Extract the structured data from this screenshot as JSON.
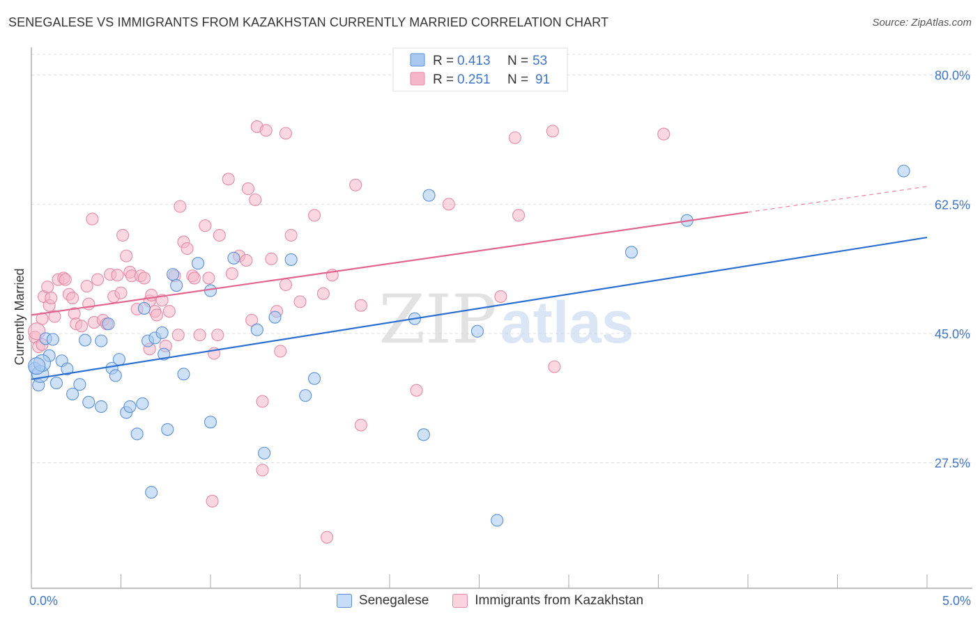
{
  "header": {
    "title": "SENEGALESE VS IMMIGRANTS FROM KAZAKHSTAN CURRENTLY MARRIED CORRELATION CHART",
    "source": "Source: ZipAtlas.com"
  },
  "watermark": {
    "zip": "ZIP",
    "atlas": "atlas"
  },
  "legend": {
    "r_label": "R =",
    "n_label": "N =",
    "entries": [
      {
        "r": "0.413",
        "n": "53"
      },
      {
        "r": "0.251",
        "n": "91"
      }
    ]
  },
  "bottom_legend": [
    "Senegalese",
    "Immigrants from Kazakhstan"
  ],
  "chart_data": {
    "type": "scatter",
    "title": "SENEGALESE VS IMMIGRANTS FROM KAZAKHSTAN CURRENTLY MARRIED CORRELATION CHART",
    "xlabel": "",
    "ylabel": "Currently Married",
    "xlim": [
      0,
      5
    ],
    "ylim": [
      10.5,
      82.8
    ],
    "x_tick_labels": [
      {
        "value": 0,
        "label": "0.0%"
      },
      {
        "value": 5,
        "label": "5.0%"
      }
    ],
    "y_tick_labels": [
      {
        "value": 27.5,
        "label": "27.5%"
      },
      {
        "value": 45.0,
        "label": "45.0%"
      },
      {
        "value": 62.5,
        "label": "62.5%"
      },
      {
        "value": 80.0,
        "label": "80.0%"
      }
    ],
    "grid": true,
    "legend_position": "top-center",
    "colors": {
      "blue": "#a8c8f0",
      "blue_edge": "#5b8fd6",
      "blue_line": "#2a6fcf",
      "pink": "#f5b7c8",
      "pink_edge": "#e48aa6",
      "pink_line": "#e0648e",
      "tick_label": "#3f74c4"
    },
    "series": [
      {
        "name": "Senegalese",
        "color": "#a8c8f0",
        "trend": {
          "x": [
            0,
            5
          ],
          "y": [
            38.8,
            58.0
          ],
          "dashed_from": null
        },
        "points": [
          [
            0.02,
            40.3
          ],
          [
            0.04,
            38.0
          ],
          [
            0.08,
            44.3
          ],
          [
            0.1,
            42.0
          ],
          [
            0.12,
            44.2
          ],
          [
            0.14,
            38.3
          ],
          [
            0.17,
            41.3
          ],
          [
            0.2,
            40.2
          ],
          [
            0.23,
            36.8
          ],
          [
            0.27,
            38.1
          ],
          [
            0.3,
            44.1
          ],
          [
            0.32,
            35.7
          ],
          [
            0.39,
            44.0
          ],
          [
            0.39,
            35.1
          ],
          [
            0.43,
            46.3
          ],
          [
            0.45,
            40.3
          ],
          [
            0.47,
            39.3
          ],
          [
            0.49,
            41.5
          ],
          [
            0.53,
            34.3
          ],
          [
            0.55,
            35.1
          ],
          [
            0.59,
            31.4
          ],
          [
            0.62,
            35.5
          ],
          [
            0.63,
            48.4
          ],
          [
            0.65,
            44.0
          ],
          [
            0.67,
            23.5
          ],
          [
            0.69,
            44.4
          ],
          [
            0.73,
            45.1
          ],
          [
            0.74,
            42.2
          ],
          [
            0.76,
            32.0
          ],
          [
            0.79,
            53.0
          ],
          [
            0.81,
            51.5
          ],
          [
            0.85,
            39.5
          ],
          [
            0.93,
            54.5
          ],
          [
            1.0,
            50.8
          ],
          [
            1.0,
            33.0
          ],
          [
            1.13,
            55.2
          ],
          [
            1.26,
            45.5
          ],
          [
            1.3,
            28.8
          ],
          [
            1.36,
            47.2
          ],
          [
            1.45,
            55.0
          ],
          [
            1.53,
            36.6
          ],
          [
            1.58,
            38.9
          ],
          [
            2.14,
            47.0
          ],
          [
            2.19,
            31.3
          ],
          [
            2.22,
            63.7
          ],
          [
            2.49,
            45.3
          ],
          [
            2.6,
            19.7
          ],
          [
            3.35,
            56.0
          ],
          [
            3.66,
            60.3
          ],
          [
            4.87,
            67.0
          ],
          [
            0.05,
            39.5
          ],
          [
            0.06,
            41.0
          ],
          [
            0.03,
            40.6
          ]
        ]
      },
      {
        "name": "Immigrants from Kazakhstan",
        "color": "#f5b7c8",
        "trend": {
          "x": [
            0,
            5
          ],
          "y": [
            47.5,
            64.9
          ],
          "dashed_from": 4.0
        },
        "points": [
          [
            0.02,
            44.5
          ],
          [
            0.04,
            43.2
          ],
          [
            0.06,
            43.5
          ],
          [
            0.06,
            47.0
          ],
          [
            0.07,
            50.0
          ],
          [
            0.09,
            51.3
          ],
          [
            0.1,
            48.8
          ],
          [
            0.11,
            49.8
          ],
          [
            0.13,
            47.3
          ],
          [
            0.15,
            52.3
          ],
          [
            0.18,
            52.5
          ],
          [
            0.19,
            52.3
          ],
          [
            0.21,
            50.3
          ],
          [
            0.23,
            49.8
          ],
          [
            0.24,
            47.7
          ],
          [
            0.25,
            46.3
          ],
          [
            0.28,
            46.0
          ],
          [
            0.31,
            51.4
          ],
          [
            0.32,
            49.0
          ],
          [
            0.34,
            60.5
          ],
          [
            0.35,
            46.5
          ],
          [
            0.37,
            52.3
          ],
          [
            0.4,
            46.8
          ],
          [
            0.42,
            46.3
          ],
          [
            0.44,
            53.0
          ],
          [
            0.46,
            50.0
          ],
          [
            0.48,
            52.9
          ],
          [
            0.5,
            50.5
          ],
          [
            0.51,
            58.3
          ],
          [
            0.53,
            55.5
          ],
          [
            0.55,
            53.3
          ],
          [
            0.56,
            52.8
          ],
          [
            0.59,
            48.3
          ],
          [
            0.61,
            52.8
          ],
          [
            0.63,
            52.5
          ],
          [
            0.66,
            42.9
          ],
          [
            0.66,
            49.4
          ],
          [
            0.67,
            50.2
          ],
          [
            0.69,
            48.0
          ],
          [
            0.7,
            47.5
          ],
          [
            0.73,
            49.5
          ],
          [
            0.75,
            43.3
          ],
          [
            0.77,
            48.0
          ],
          [
            0.8,
            52.8
          ],
          [
            0.82,
            44.8
          ],
          [
            0.83,
            62.2
          ],
          [
            0.85,
            57.4
          ],
          [
            0.87,
            56.5
          ],
          [
            0.9,
            52.8
          ],
          [
            0.91,
            52.5
          ],
          [
            0.94,
            44.8
          ],
          [
            0.97,
            59.6
          ],
          [
            0.99,
            52.5
          ],
          [
            1.02,
            42.3
          ],
          [
            1.04,
            44.8
          ],
          [
            1.05,
            58.3
          ],
          [
            1.1,
            65.9
          ],
          [
            1.12,
            53.1
          ],
          [
            1.16,
            55.5
          ],
          [
            1.2,
            54.9
          ],
          [
            1.21,
            64.6
          ],
          [
            1.23,
            46.8
          ],
          [
            1.25,
            63.1
          ],
          [
            1.26,
            73.0
          ],
          [
            1.29,
            35.8
          ],
          [
            1.29,
            26.5
          ],
          [
            1.31,
            72.5
          ],
          [
            1.34,
            55.1
          ],
          [
            1.37,
            48.0
          ],
          [
            1.39,
            42.6
          ],
          [
            1.42,
            51.6
          ],
          [
            1.42,
            72.1
          ],
          [
            1.45,
            58.3
          ],
          [
            1.5,
            49.3
          ],
          [
            1.58,
            61.0
          ],
          [
            1.63,
            50.4
          ],
          [
            1.65,
            17.4
          ],
          [
            1.68,
            52.9
          ],
          [
            1.81,
            65.1
          ],
          [
            1.84,
            48.8
          ],
          [
            1.84,
            32.6
          ],
          [
            2.15,
            37.3
          ],
          [
            2.33,
            62.5
          ],
          [
            2.62,
            50.0
          ],
          [
            2.7,
            71.5
          ],
          [
            2.72,
            61.0
          ],
          [
            2.91,
            72.4
          ],
          [
            2.92,
            40.5
          ],
          [
            3.53,
            72.0
          ],
          [
            1.01,
            22.3
          ],
          [
            0.03,
            45.3
          ]
        ]
      }
    ]
  }
}
